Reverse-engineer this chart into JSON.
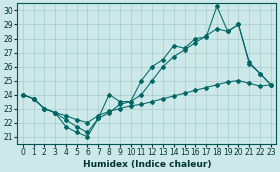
{
  "xlabel": "Humidex (Indice chaleur)",
  "xlim": [
    -0.5,
    23.5
  ],
  "ylim": [
    20.5,
    30.5
  ],
  "xticks": [
    0,
    1,
    2,
    3,
    4,
    5,
    6,
    7,
    8,
    9,
    10,
    11,
    12,
    13,
    14,
    15,
    16,
    17,
    18,
    19,
    20,
    21,
    22,
    23
  ],
  "yticks": [
    21,
    22,
    23,
    24,
    25,
    26,
    27,
    28,
    29,
    30
  ],
  "bg_color": "#cce8e8",
  "line_color": "#006666",
  "grid_color": "#aacccc",
  "lines": [
    {
      "x": [
        0,
        1,
        2,
        3,
        4,
        5,
        6,
        7,
        8,
        9,
        10,
        11,
        12,
        13,
        14,
        15,
        16,
        17,
        18,
        19,
        20,
        21,
        22,
        23
      ],
      "y": [
        24.0,
        23.7,
        23.0,
        22.7,
        22.5,
        22.2,
        22.0,
        22.5,
        22.8,
        23.0,
        23.2,
        23.3,
        23.5,
        23.7,
        23.9,
        24.1,
        24.3,
        24.5,
        24.7,
        24.9,
        25.0,
        24.8,
        24.6,
        24.7
      ]
    },
    {
      "x": [
        0,
        1,
        2,
        3,
        4,
        5,
        6,
        7,
        8,
        9,
        10,
        11,
        12,
        13,
        14,
        15,
        16,
        17,
        18,
        19,
        20,
        21,
        22,
        23
      ],
      "y": [
        24.0,
        23.7,
        23.0,
        22.7,
        22.2,
        21.7,
        21.3,
        22.3,
        22.7,
        23.3,
        23.5,
        24.0,
        25.0,
        26.0,
        26.7,
        27.2,
        27.7,
        28.2,
        28.7,
        28.5,
        29.0,
        26.3,
        25.5,
        24.7
      ]
    },
    {
      "x": [
        0,
        1,
        2,
        3,
        4,
        5,
        6,
        7,
        8,
        9,
        10,
        11,
        12,
        13,
        14,
        15,
        16,
        17,
        18,
        19,
        20,
        21,
        22,
        23
      ],
      "y": [
        24.0,
        23.7,
        23.0,
        22.7,
        21.7,
        21.3,
        21.0,
        22.3,
        24.0,
        23.5,
        23.5,
        25.0,
        26.0,
        26.5,
        27.5,
        27.3,
        28.0,
        28.1,
        30.3,
        28.5,
        29.0,
        26.2,
        25.5,
        24.7
      ]
    }
  ]
}
